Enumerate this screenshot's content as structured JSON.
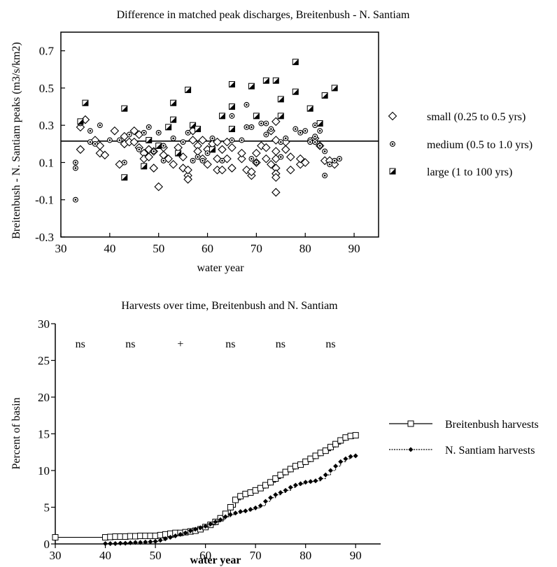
{
  "chart_data": [
    {
      "type": "scatter",
      "title": "Difference in matched peak discharges, Breitenbush - N. Santiam",
      "xlabel": "water year",
      "ylabel": "Breitenbush - N. Santiam peaks (m3/s/km2)",
      "xlim": [
        30,
        95
      ],
      "ylim": [
        -0.3,
        0.8
      ],
      "x_ticks": [
        30,
        40,
        50,
        60,
        70,
        80,
        90
      ],
      "y_ticks": [
        -0.3,
        -0.1,
        0.1,
        0.3,
        0.5,
        0.7
      ],
      "y_tick_labels": [
        "-0.3",
        "-0.1",
        "0.1",
        "0.3",
        "0.5",
        "0.7"
      ],
      "grid": false,
      "legend_position": "right",
      "reference_line": {
        "y": 0.215
      },
      "series": [
        {
          "name": "small (0.25 to 0.5 yrs)",
          "marker": "diamond",
          "points": [
            [
              34,
              0.17
            ],
            [
              34,
              0.29
            ],
            [
              35,
              0.33
            ],
            [
              37,
              0.22
            ],
            [
              38,
              0.19
            ],
            [
              38,
              0.15
            ],
            [
              39,
              0.14
            ],
            [
              41,
              0.27
            ],
            [
              42,
              0.09
            ],
            [
              43,
              0.2
            ],
            [
              43,
              0.24
            ],
            [
              44,
              0.21
            ],
            [
              45,
              0.27
            ],
            [
              45,
              0.21
            ],
            [
              46,
              0.25
            ],
            [
              46,
              0.18
            ],
            [
              47,
              0.15
            ],
            [
              47,
              0.12
            ],
            [
              48,
              0.17
            ],
            [
              48,
              0.13
            ],
            [
              49,
              0.07
            ],
            [
              49,
              0.16
            ],
            [
              50,
              -0.03
            ],
            [
              51,
              0.14
            ],
            [
              51,
              0.18
            ],
            [
              52,
              0.12
            ],
            [
              53,
              0.09
            ],
            [
              54,
              0.18
            ],
            [
              55,
              0.07
            ],
            [
              55,
              0.13
            ],
            [
              56,
              0.03
            ],
            [
              56,
              0.01
            ],
            [
              56,
              0.06
            ],
            [
              57,
              0.22
            ],
            [
              57,
              0.27
            ],
            [
              58,
              0.19
            ],
            [
              58,
              0.16
            ],
            [
              59,
              0.12
            ],
            [
              59,
              0.22
            ],
            [
              60,
              0.09
            ],
            [
              60,
              0.17
            ],
            [
              61,
              0.2
            ],
            [
              62,
              0.21
            ],
            [
              62,
              0.06
            ],
            [
              62,
              0.12
            ],
            [
              63,
              0.17
            ],
            [
              63,
              0.06
            ],
            [
              64,
              0.12
            ],
            [
              64,
              0.21
            ],
            [
              65,
              0.18
            ],
            [
              65,
              0.07
            ],
            [
              67,
              0.12
            ],
            [
              67,
              0.15
            ],
            [
              68,
              0.06
            ],
            [
              69,
              0.03
            ],
            [
              69,
              0.05
            ],
            [
              70,
              0.1
            ],
            [
              70,
              0.15
            ],
            [
              71,
              0.19
            ],
            [
              72,
              0.18
            ],
            [
              72,
              0.12
            ],
            [
              73,
              0.09
            ],
            [
              73,
              0.27
            ],
            [
              74,
              0.32
            ],
            [
              74,
              0.22
            ],
            [
              74,
              0.16
            ],
            [
              74,
              0.12
            ],
            [
              74,
              0.07
            ],
            [
              74,
              0.04
            ],
            [
              74,
              0.02
            ],
            [
              74,
              -0.06
            ],
            [
              76,
              0.17
            ],
            [
              76,
              0.21
            ],
            [
              77,
              0.13
            ],
            [
              77,
              0.06
            ],
            [
              79,
              0.09
            ],
            [
              79,
              0.12
            ],
            [
              80,
              0.1
            ],
            [
              82,
              0.23
            ],
            [
              83,
              0.19
            ],
            [
              84,
              0.11
            ],
            [
              85,
              0.11
            ],
            [
              86,
              0.09
            ]
          ]
        },
        {
          "name": "medium (0.5 to 1.0 yrs)",
          "marker": "circle",
          "points": [
            [
              33,
              -0.1
            ],
            [
              33,
              0.07
            ],
            [
              33,
              0.1
            ],
            [
              34,
              0.31
            ],
            [
              36,
              0.27
            ],
            [
              36,
              0.21
            ],
            [
              37,
              0.2
            ],
            [
              38,
              0.3
            ],
            [
              40,
              0.22
            ],
            [
              42,
              0.22
            ],
            [
              43,
              0.1
            ],
            [
              44,
              0.25
            ],
            [
              46,
              0.17
            ],
            [
              47,
              0.26
            ],
            [
              48,
              0.29
            ],
            [
              49,
              0.16
            ],
            [
              50,
              0.26
            ],
            [
              51,
              0.19
            ],
            [
              51,
              0.11
            ],
            [
              53,
              0.23
            ],
            [
              55,
              0.21
            ],
            [
              56,
              0.26
            ],
            [
              57,
              0.11
            ],
            [
              58,
              0.13
            ],
            [
              59,
              0.11
            ],
            [
              60,
              0.15
            ],
            [
              61,
              0.23
            ],
            [
              63,
              0.11
            ],
            [
              65,
              0.22
            ],
            [
              65,
              0.35
            ],
            [
              67,
              0.22
            ],
            [
              68,
              0.41
            ],
            [
              68,
              0.29
            ],
            [
              69,
              0.29
            ],
            [
              69,
              0.12
            ],
            [
              70,
              0.1
            ],
            [
              71,
              0.31
            ],
            [
              72,
              0.25
            ],
            [
              72,
              0.31
            ],
            [
              73,
              0.28
            ],
            [
              75,
              0.21
            ],
            [
              75,
              0.13
            ],
            [
              76,
              0.23
            ],
            [
              78,
              0.28
            ],
            [
              79,
              0.26
            ],
            [
              80,
              0.27
            ],
            [
              81,
              0.22
            ],
            [
              81,
              0.21
            ],
            [
              82,
              0.3
            ],
            [
              82,
              0.24
            ],
            [
              82,
              0.21
            ],
            [
              83,
              0.27
            ],
            [
              83,
              0.19
            ],
            [
              84,
              0.16
            ],
            [
              84,
              0.03
            ],
            [
              85,
              0.09
            ],
            [
              86,
              0.11
            ],
            [
              87,
              0.12
            ]
          ]
        },
        {
          "name": "large (1 to 100 yrs)",
          "marker": "square",
          "points": [
            [
              35,
              0.42
            ],
            [
              34,
              0.32
            ],
            [
              43,
              0.39
            ],
            [
              43,
              0.02
            ],
            [
              47,
              0.08
            ],
            [
              48,
              0.22
            ],
            [
              50,
              0.19
            ],
            [
              52,
              0.29
            ],
            [
              53,
              0.42
            ],
            [
              53,
              0.33
            ],
            [
              54,
              0.15
            ],
            [
              56,
              0.49
            ],
            [
              57,
              0.3
            ],
            [
              58,
              0.28
            ],
            [
              61,
              0.17
            ],
            [
              63,
              0.35
            ],
            [
              65,
              0.52
            ],
            [
              65,
              0.4
            ],
            [
              65,
              0.28
            ],
            [
              69,
              0.51
            ],
            [
              70,
              0.35
            ],
            [
              72,
              0.54
            ],
            [
              74,
              0.54
            ],
            [
              75,
              0.44
            ],
            [
              75,
              0.35
            ],
            [
              78,
              0.64
            ],
            [
              78,
              0.48
            ],
            [
              81,
              0.39
            ],
            [
              83,
              0.31
            ],
            [
              84,
              0.46
            ],
            [
              86,
              0.5
            ]
          ]
        }
      ]
    },
    {
      "type": "line",
      "title": "Harvests over time, Breitenbush and N. Santiam",
      "xlabel": "water year",
      "ylabel": "Percent of basin",
      "xlim": [
        30,
        95
      ],
      "ylim": [
        0,
        30
      ],
      "x_ticks": [
        30,
        40,
        50,
        60,
        70,
        80,
        90
      ],
      "y_ticks": [
        0,
        5,
        10,
        15,
        20,
        25,
        30
      ],
      "grid": false,
      "legend_position": "right",
      "annotations": [
        {
          "text": "ns",
          "x": 35
        },
        {
          "text": "ns",
          "x": 45
        },
        {
          "text": "+",
          "x": 55
        },
        {
          "text": "ns",
          "x": 65
        },
        {
          "text": "ns",
          "x": 75
        },
        {
          "text": "ns",
          "x": 85
        }
      ],
      "series": [
        {
          "name": "Breitenbush harvests",
          "marker": "open-square",
          "line": "solid",
          "x": [
            30,
            40,
            41,
            42,
            43,
            44,
            45,
            46,
            47,
            48,
            49,
            50,
            51,
            52,
            53,
            54,
            55,
            56,
            57,
            58,
            59,
            60,
            61,
            62,
            63,
            64,
            65,
            66,
            67,
            68,
            69,
            70,
            71,
            72,
            73,
            74,
            75,
            76,
            77,
            78,
            79,
            80,
            81,
            82,
            83,
            84,
            85,
            86,
            87,
            88,
            89,
            90
          ],
          "values": [
            0.9,
            0.9,
            0.95,
            1.0,
            1.0,
            1.0,
            1.05,
            1.05,
            1.1,
            1.1,
            1.1,
            1.1,
            1.2,
            1.3,
            1.4,
            1.5,
            1.5,
            1.6,
            1.7,
            1.8,
            2.0,
            2.3,
            2.6,
            3.0,
            3.5,
            4.1,
            5.0,
            6.0,
            6.5,
            6.8,
            7.0,
            7.3,
            7.6,
            8.0,
            8.4,
            8.9,
            9.4,
            9.8,
            10.2,
            10.6,
            10.8,
            11.2,
            11.6,
            12.0,
            12.4,
            12.7,
            13.2,
            13.6,
            14.1,
            14.5,
            14.7,
            14.8
          ]
        },
        {
          "name": "N. Santiam harvests",
          "marker": "filled-diamond",
          "line": "dotted",
          "x": [
            40,
            41,
            42,
            43,
            44,
            45,
            46,
            47,
            48,
            49,
            50,
            51,
            52,
            53,
            54,
            55,
            56,
            57,
            58,
            59,
            60,
            61,
            62,
            63,
            64,
            65,
            66,
            67,
            68,
            69,
            70,
            71,
            72,
            73,
            74,
            75,
            76,
            77,
            78,
            79,
            80,
            81,
            82,
            83,
            84,
            85,
            86,
            87,
            88,
            89,
            90
          ],
          "values": [
            0.05,
            0.05,
            0.05,
            0.1,
            0.1,
            0.15,
            0.2,
            0.2,
            0.25,
            0.3,
            0.35,
            0.5,
            0.7,
            0.9,
            1.1,
            1.3,
            1.5,
            1.8,
            2.0,
            2.2,
            2.4,
            2.7,
            3.0,
            3.3,
            3.7,
            4.0,
            4.2,
            4.4,
            4.5,
            4.7,
            4.9,
            5.2,
            5.8,
            6.3,
            6.7,
            7.0,
            7.3,
            7.7,
            8.0,
            8.2,
            8.4,
            8.5,
            8.6,
            8.9,
            9.4,
            10.0,
            10.6,
            11.2,
            11.6,
            11.9,
            12.0
          ]
        }
      ]
    }
  ]
}
